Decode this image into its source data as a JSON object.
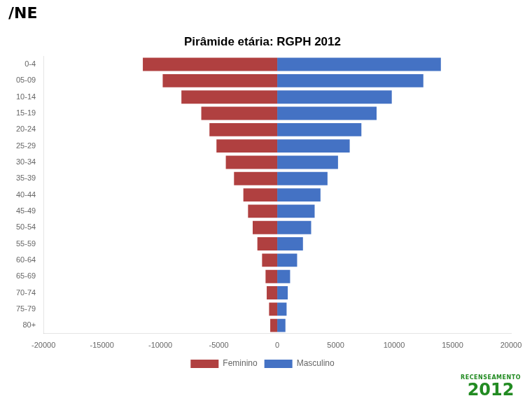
{
  "chart_data": {
    "type": "bar",
    "orientation": "horizontal",
    "title": "Pirâmide etária: RGPH 2012",
    "categories": [
      "80+",
      "75-79",
      "70-74",
      "65-69",
      "60-64",
      "55-59",
      "50-54",
      "45-49",
      "40-44",
      "35-39",
      "30-34",
      "25-29",
      "20-24",
      "15-19",
      "10-14",
      "05-09",
      "0-4"
    ],
    "series": [
      {
        "name": "Feminino",
        "color": "#b04040",
        "values": [
          -600,
          -700,
          -900,
          -1000,
          -1300,
          -1700,
          -2100,
          -2500,
          -2900,
          -3700,
          -4400,
          -5200,
          -5800,
          -6500,
          -8200,
          -9800,
          -11500
        ]
      },
      {
        "name": "Masculino",
        "color": "#4472c4",
        "values": [
          700,
          800,
          900,
          1100,
          1700,
          2200,
          2900,
          3200,
          3700,
          4300,
          5200,
          6200,
          7200,
          8500,
          9800,
          12500,
          14000
        ]
      }
    ],
    "xlim": [
      -20000,
      20000
    ],
    "xticks": [
      -20000,
      -15000,
      -10000,
      -5000,
      0,
      5000,
      10000,
      15000,
      20000
    ],
    "grid": false,
    "legend": "bottom",
    "annotations": [
      "/NE",
      "RECENSEAMENTO",
      "2012"
    ]
  }
}
